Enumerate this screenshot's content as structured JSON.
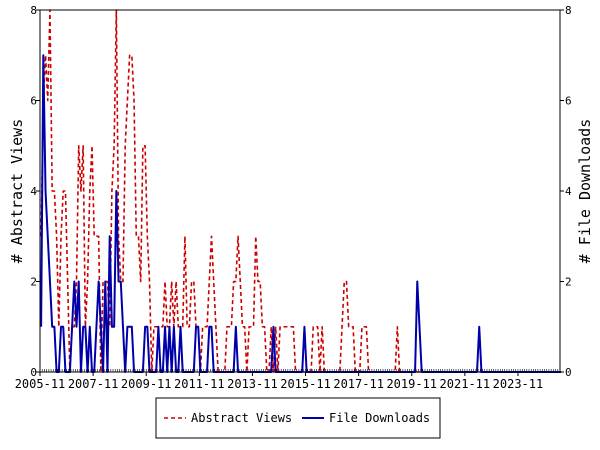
{
  "chart_data": {
    "type": "line",
    "left_axis_label": "# Abstract Views",
    "right_axis_label": "# File Downloads",
    "ylim": [
      0,
      8
    ],
    "y_ticks": [
      0,
      2,
      4,
      6,
      8
    ],
    "x_tick_labels": [
      "2005-11",
      "2007-11",
      "2009-11",
      "2011-11",
      "2013-11",
      "2015-11",
      "2017-11",
      "2019-11",
      "2021-11",
      "2023-11"
    ],
    "x_start": "2005-11",
    "x_end": "2025-10",
    "legend_placement": "bottom-center",
    "series": [
      {
        "name": "Abstract Views",
        "color": "#cc0000",
        "style": "dashed",
        "values": [
          3,
          6,
          7,
          6,
          8,
          4,
          4,
          3,
          1,
          3,
          4,
          4,
          2,
          0,
          1,
          1,
          2,
          5,
          4,
          5,
          1,
          2,
          4,
          5,
          3,
          3,
          3,
          0,
          2,
          2,
          2,
          1,
          4,
          5,
          8,
          3,
          2,
          2,
          5,
          6,
          7,
          7,
          6,
          3,
          3,
          2,
          5,
          5,
          3,
          2,
          0,
          1,
          1,
          1,
          1,
          1,
          2,
          1,
          1,
          2,
          1,
          2,
          1,
          1,
          1,
          3,
          1,
          1,
          2,
          2,
          1,
          1,
          0,
          1,
          1,
          1,
          2,
          3,
          2,
          1,
          0,
          0,
          0,
          0,
          1,
          1,
          1,
          2,
          2,
          3,
          2,
          1,
          1,
          0,
          1,
          1,
          1,
          3,
          2,
          2,
          1,
          1,
          0,
          0,
          1,
          0,
          1,
          0,
          1,
          1,
          1,
          1,
          1,
          1,
          1,
          0,
          0,
          0,
          0,
          0,
          0,
          0,
          0,
          1,
          1,
          1,
          0,
          1,
          0,
          0,
          0,
          0,
          0,
          0,
          0,
          0,
          1,
          2,
          2,
          1,
          1,
          1,
          0,
          0,
          0,
          1,
          1,
          1,
          0,
          0,
          0,
          0,
          0,
          0,
          0,
          0,
          0,
          0,
          0,
          0,
          0,
          1,
          0,
          0,
          0,
          0,
          0,
          0,
          0,
          0,
          0,
          0,
          0,
          0,
          0,
          0,
          0,
          0,
          0,
          0,
          0,
          0,
          0,
          0,
          0,
          0,
          0,
          0,
          0,
          0,
          0,
          0,
          0,
          0,
          0,
          0,
          0,
          0,
          0,
          0,
          0,
          0,
          0,
          0,
          0,
          0,
          0,
          0,
          0,
          0,
          0,
          0,
          0,
          0,
          0,
          0,
          0,
          0,
          0,
          0,
          0,
          0,
          0,
          0,
          0,
          0,
          0,
          0,
          0,
          0,
          0,
          0,
          0,
          0,
          0
        ]
      },
      {
        "name": "File Downloads",
        "color": "#0000aa",
        "style": "solid",
        "values": [
          1,
          7,
          4,
          3,
          2,
          1,
          1,
          0,
          0,
          1,
          1,
          0,
          0,
          0,
          1,
          2,
          1,
          2,
          0,
          1,
          1,
          0,
          1,
          0,
          0,
          1,
          2,
          1,
          0,
          2,
          0,
          3,
          1,
          1,
          4,
          2,
          2,
          1,
          0,
          1,
          1,
          1,
          0,
          0,
          0,
          0,
          0,
          1,
          1,
          0,
          0,
          0,
          0,
          1,
          0,
          0,
          1,
          0,
          1,
          0,
          1,
          0,
          0,
          1,
          0,
          0,
          0,
          0,
          0,
          0,
          1,
          1,
          0,
          0,
          0,
          0,
          1,
          1,
          0,
          0,
          0,
          0,
          0,
          0,
          0,
          0,
          0,
          0,
          1,
          0,
          0,
          0,
          0,
          0,
          0,
          0,
          0,
          0,
          0,
          0,
          0,
          0,
          0,
          0,
          0,
          1,
          0,
          0,
          0,
          0,
          0,
          0,
          0,
          0,
          0,
          0,
          0,
          0,
          0,
          1,
          0,
          0,
          0,
          0,
          0,
          0,
          0,
          0,
          0,
          0,
          0,
          0,
          0,
          0,
          0,
          0,
          0,
          0,
          0,
          0,
          0,
          0,
          0,
          0,
          0,
          0,
          0,
          0,
          0,
          0,
          0,
          0,
          0,
          0,
          0,
          0,
          0,
          0,
          0,
          0,
          0,
          0,
          0,
          0,
          0,
          0,
          0,
          0,
          0,
          0,
          2,
          1,
          0,
          0,
          0,
          0,
          0,
          0,
          0,
          0,
          0,
          0,
          0,
          0,
          0,
          0,
          0,
          0,
          0,
          0,
          0,
          0,
          0,
          0,
          0,
          0,
          0,
          0,
          1,
          0,
          0,
          0,
          0,
          0,
          0,
          0,
          0,
          0,
          0,
          0,
          0,
          0,
          0,
          0,
          0,
          0,
          0,
          0,
          0,
          0,
          0,
          0,
          0,
          0,
          0,
          0,
          0,
          0,
          0,
          0,
          0,
          0,
          0,
          0,
          0,
          0
        ]
      }
    ]
  }
}
